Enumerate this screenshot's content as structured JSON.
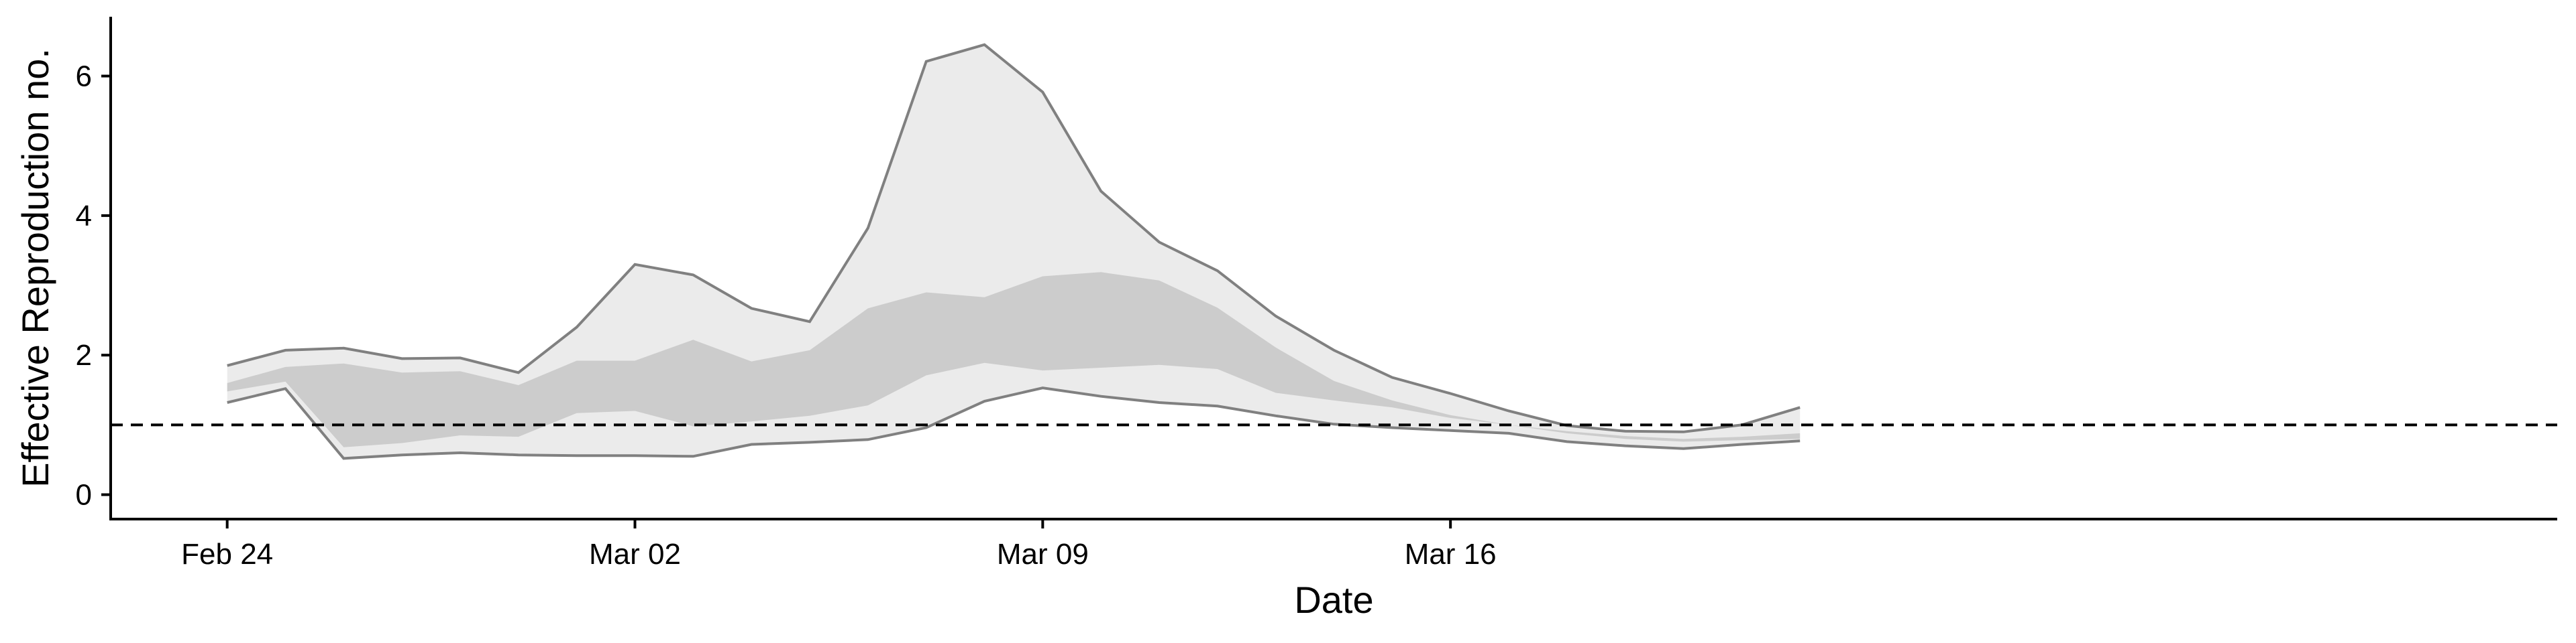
{
  "chart_data": {
    "type": "area",
    "title": "",
    "xlabel": "Date",
    "ylabel": "Effective Reproduction no.",
    "xlim": [
      "2020-02-22",
      "2020-04-04"
    ],
    "ylim": [
      -0.35,
      6.85
    ],
    "x_ticks": [
      {
        "date": "2020-02-24",
        "label": "Feb 24"
      },
      {
        "date": "2020-03-02",
        "label": "Mar 02"
      },
      {
        "date": "2020-03-09",
        "label": "Mar 09"
      },
      {
        "date": "2020-03-16",
        "label": "Mar 16"
      }
    ],
    "y_ticks": [
      0,
      2,
      4,
      6
    ],
    "reference_line": {
      "y": 1,
      "style": "dashed"
    },
    "grid": false,
    "legend": "none",
    "colors": {
      "outer_band": "#ebebeb",
      "inner_band": "#cccccc",
      "outline": "#808080"
    },
    "dates": [
      "2020-02-24",
      "2020-02-25",
      "2020-02-26",
      "2020-02-27",
      "2020-02-28",
      "2020-02-29",
      "2020-03-01",
      "2020-03-02",
      "2020-03-03",
      "2020-03-04",
      "2020-03-05",
      "2020-03-06",
      "2020-03-07",
      "2020-03-08",
      "2020-03-09",
      "2020-03-10",
      "2020-03-11",
      "2020-03-12",
      "2020-03-13",
      "2020-03-14",
      "2020-03-15",
      "2020-03-16",
      "2020-03-17",
      "2020-03-18",
      "2020-03-19",
      "2020-03-20",
      "2020-03-21",
      "2020-03-22"
    ],
    "outer_upper": [
      1.85,
      2.07,
      2.1,
      1.95,
      1.96,
      1.75,
      2.4,
      3.3,
      3.15,
      2.67,
      2.48,
      3.82,
      6.21,
      6.45,
      5.77,
      4.35,
      3.62,
      3.21,
      2.56,
      2.07,
      1.68,
      1.45,
      1.2,
      0.99,
      0.91,
      0.9,
      1.0,
      1.25
    ],
    "outer_lower": [
      1.32,
      1.52,
      0.52,
      0.57,
      0.6,
      0.57,
      0.56,
      0.56,
      0.55,
      0.72,
      0.75,
      0.79,
      0.96,
      1.34,
      1.53,
      1.41,
      1.32,
      1.27,
      1.13,
      1.01,
      0.96,
      0.92,
      0.88,
      0.76,
      0.7,
      0.66,
      0.72,
      0.77
    ],
    "inner_upper": [
      1.6,
      1.83,
      1.88,
      1.75,
      1.77,
      1.57,
      1.92,
      1.92,
      2.22,
      1.91,
      2.07,
      2.67,
      2.9,
      2.83,
      3.13,
      3.19,
      3.07,
      2.68,
      2.11,
      1.63,
      1.35,
      1.14,
      1.0,
      0.91,
      0.84,
      0.8,
      0.83,
      0.88
    ],
    "inner_lower": [
      1.48,
      1.62,
      0.68,
      0.74,
      0.85,
      0.83,
      1.17,
      1.2,
      0.98,
      1.05,
      1.13,
      1.28,
      1.71,
      1.89,
      1.78,
      1.82,
      1.86,
      1.8,
      1.46,
      1.35,
      1.25,
      1.1,
      1.0,
      0.88,
      0.8,
      0.76,
      0.78,
      0.8
    ]
  }
}
